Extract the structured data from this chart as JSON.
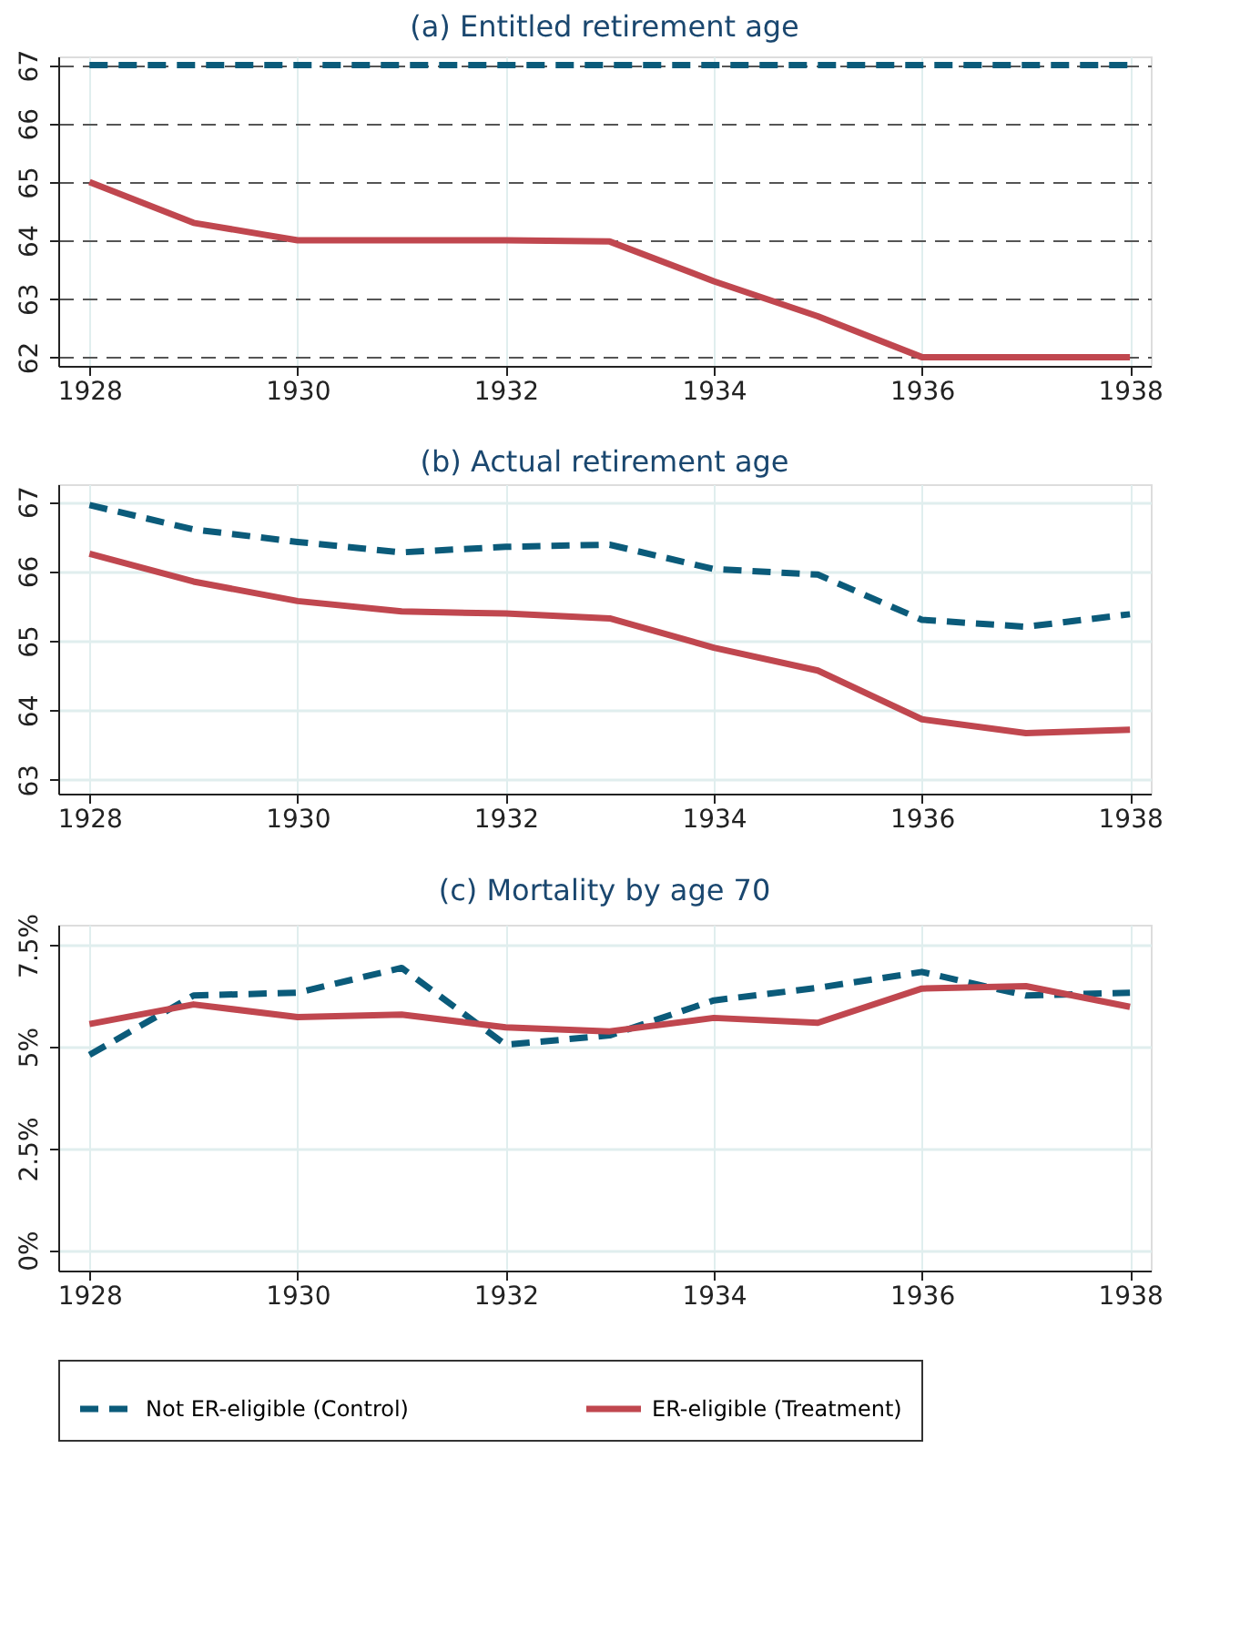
{
  "chart_data": [
    {
      "type": "line",
      "title": "(a) Entitled retirement age",
      "x": [
        1928,
        1929,
        1930,
        1931,
        1932,
        1933,
        1934,
        1935,
        1936,
        1937,
        1938
      ],
      "xlim": [
        1927.7,
        1938.2
      ],
      "xticks": [
        1928,
        1930,
        1932,
        1934,
        1936,
        1938
      ],
      "ylim": [
        61.85,
        67.15
      ],
      "yticks": [
        62,
        63,
        64,
        65,
        66,
        67
      ],
      "grid": true,
      "legend": false,
      "series": [
        {
          "color": "#0b5b7a",
          "line_style": "dashed",
          "values": [
            67,
            67,
            67,
            67,
            67,
            67,
            67,
            67,
            67,
            67,
            67
          ]
        },
        {
          "color": "#c0474f",
          "line_style": "solid",
          "values": [
            65,
            64.3,
            64,
            64,
            64,
            63.98,
            63.3,
            62.7,
            62,
            62,
            62
          ]
        }
      ]
    },
    {
      "type": "line",
      "title": "(b) Actual retirement age",
      "x": [
        1928,
        1929,
        1930,
        1931,
        1932,
        1933,
        1934,
        1935,
        1936,
        1937,
        1938
      ],
      "xlim": [
        1927.7,
        1938.2
      ],
      "xticks": [
        1928,
        1930,
        1932,
        1934,
        1936,
        1938
      ],
      "ylim": [
        62.8,
        67.25
      ],
      "yticks": [
        63,
        64,
        65,
        66,
        67
      ],
      "grid": true,
      "legend": false,
      "series": [
        {
          "color": "#0b5b7a",
          "line_style": "dashed",
          "values": [
            66.95,
            66.6,
            66.42,
            66.27,
            66.35,
            66.38,
            66.03,
            65.95,
            65.3,
            65.2,
            65.38
          ]
        },
        {
          "color": "#c0474f",
          "line_style": "solid",
          "values": [
            66.25,
            65.85,
            65.57,
            65.42,
            65.39,
            65.32,
            64.9,
            64.57,
            63.87,
            63.67,
            63.72
          ]
        }
      ]
    },
    {
      "type": "line",
      "title": "(c) Mortality by age 70",
      "x": [
        1928,
        1929,
        1930,
        1931,
        1932,
        1933,
        1934,
        1935,
        1936,
        1937,
        1938
      ],
      "xlim": [
        1927.7,
        1938.2
      ],
      "xticks": [
        1928,
        1930,
        1932,
        1934,
        1936,
        1938
      ],
      "ylim": [
        -0.5,
        8.0
      ],
      "yticks": [
        {
          "value": 0,
          "label": "0%"
        },
        {
          "value": 2.5,
          "label": "2.5%"
        },
        {
          "value": 5,
          "label": "5%"
        },
        {
          "value": 7.5,
          "label": "7.5%"
        }
      ],
      "grid": true,
      "legend": "bottom",
      "series": [
        {
          "name": "Not ER-eligible (Control)",
          "color": "#0b5b7a",
          "line_style": "dashed",
          "values": [
            4.8,
            6.26,
            6.33,
            6.94,
            5.05,
            5.28,
            6.14,
            6.45,
            6.84,
            6.26,
            6.33
          ]
        },
        {
          "name": "ER-eligible (Treatment)",
          "color": "#c0474f",
          "line_style": "solid",
          "values": [
            5.56,
            6.04,
            5.73,
            5.79,
            5.48,
            5.38,
            5.71,
            5.59,
            6.43,
            6.49,
            5.98
          ]
        }
      ]
    }
  ]
}
